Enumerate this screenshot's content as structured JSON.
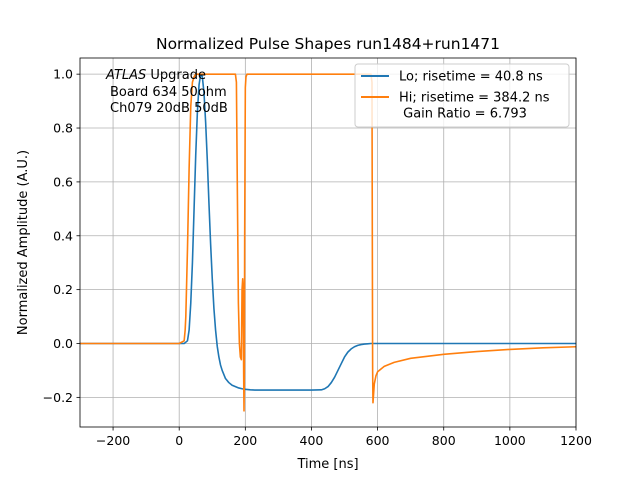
{
  "chart_data": {
    "type": "line",
    "title": "Normalized Pulse Shapes run1484+run1471",
    "xlabel": "Time [ns]",
    "ylabel": "Normalized Amplitude (A.U.)",
    "xlim": [
      -300,
      1200
    ],
    "ylim": [
      -0.31,
      1.06
    ],
    "xticks": [
      -200,
      0,
      200,
      400,
      600,
      800,
      1000,
      1200
    ],
    "xtick_labels": [
      "−200",
      "0",
      "200",
      "400",
      "600",
      "800",
      "1000",
      "1200"
    ],
    "yticks": [
      -0.2,
      0.0,
      0.2,
      0.4,
      0.6,
      0.8,
      1.0
    ],
    "ytick_labels": [
      "−0.2",
      "0.0",
      "0.2",
      "0.4",
      "0.6",
      "0.8",
      "1.0"
    ],
    "grid": true,
    "legend_position": "top-right",
    "annotation": {
      "italic": "ATLAS",
      "line1_rest": " Upgrade",
      "line2": "Board 634 50ohm",
      "line3": "Ch079 20dB 50dB"
    },
    "series": [
      {
        "name": "Lo; risetime = 40.8 ns",
        "color": "#1f77b4",
        "x": [
          -300,
          0,
          15,
          25,
          30,
          35,
          40,
          45,
          50,
          55,
          60,
          65,
          70,
          75,
          80,
          85,
          90,
          95,
          100,
          105,
          110,
          115,
          120,
          125,
          130,
          140,
          150,
          160,
          170,
          180,
          190,
          200,
          215,
          230,
          260,
          300,
          350,
          400,
          430,
          440,
          450,
          460,
          470,
          480,
          490,
          500,
          510,
          520,
          530,
          540,
          550,
          560,
          570,
          580,
          600,
          700,
          800,
          1000,
          1200
        ],
        "y": [
          0.0,
          0.0,
          0.0,
          0.01,
          0.05,
          0.15,
          0.3,
          0.5,
          0.7,
          0.86,
          0.96,
          1.0,
          0.99,
          0.93,
          0.82,
          0.68,
          0.52,
          0.37,
          0.24,
          0.13,
          0.05,
          -0.01,
          -0.05,
          -0.08,
          -0.1,
          -0.13,
          -0.145,
          -0.155,
          -0.16,
          -0.165,
          -0.168,
          -0.17,
          -0.172,
          -0.173,
          -0.173,
          -0.173,
          -0.173,
          -0.173,
          -0.172,
          -0.168,
          -0.16,
          -0.145,
          -0.125,
          -0.1,
          -0.075,
          -0.05,
          -0.032,
          -0.02,
          -0.012,
          -0.007,
          -0.004,
          -0.002,
          -0.001,
          0.0,
          0.0,
          0.0,
          0.0,
          0.0,
          0.0
        ]
      },
      {
        "name": "Hi; risetime = 384.2 ns\n Gain Ratio = 6.793",
        "color": "#ff7f0e",
        "x": [
          -300,
          0,
          15,
          18,
          20,
          25,
          30,
          35,
          40,
          45,
          50,
          55,
          60,
          170,
          173,
          176,
          179,
          182,
          185,
          188,
          190,
          192,
          193,
          194,
          195,
          196,
          197,
          198,
          200,
          202,
          205,
          210,
          580,
          583,
          584,
          585,
          586,
          590,
          595,
          600,
          620,
          650,
          700,
          800,
          900,
          1000,
          1100,
          1200
        ],
        "y": [
          0.0,
          0.0,
          0.01,
          0.05,
          0.1,
          0.35,
          0.65,
          0.88,
          0.97,
          0.99,
          1.0,
          1.0,
          1.0,
          1.0,
          0.97,
          0.55,
          0.15,
          0.0,
          -0.05,
          -0.06,
          0.2,
          0.24,
          0.22,
          0.06,
          -0.12,
          -0.25,
          -0.1,
          0.4,
          0.95,
          0.99,
          1.0,
          1.0,
          1.0,
          0.97,
          0.4,
          -0.1,
          -0.22,
          -0.15,
          -0.12,
          -0.105,
          -0.085,
          -0.07,
          -0.055,
          -0.04,
          -0.03,
          -0.022,
          -0.016,
          -0.012
        ]
      }
    ]
  }
}
